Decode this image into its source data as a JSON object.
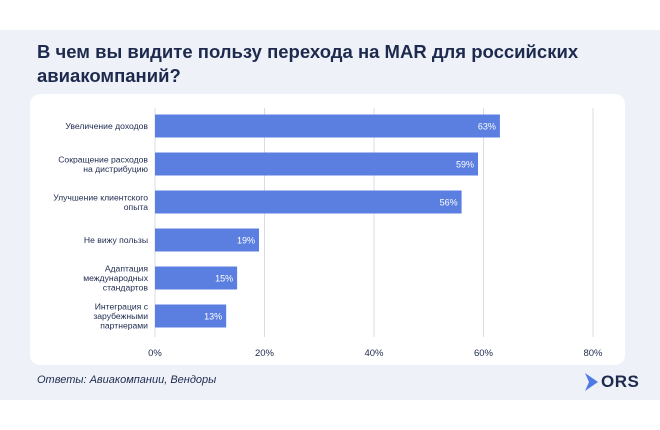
{
  "slide": {
    "title": "В чем вы видите пользу перехода на MAR для российских авиакомпаний?",
    "footer_note": "Ответы: Авиакомпании, Вендоры",
    "logo_text": "ORS",
    "colors": {
      "background_band": "#eef2f8",
      "card": "#ffffff",
      "bar": "#5b7fe0",
      "title": "#1d2a4e",
      "logo_accent": "#4f7ae6"
    }
  },
  "chart_data": {
    "type": "bar",
    "orientation": "horizontal",
    "categories": [
      "Увеличение доходов",
      "Сокращение расходов на дистрибуцию",
      "Улучшение клиентского опыта",
      "Не вижу пользы",
      "Адаптация международных стандартов",
      "Интеграция с зарубежными партнерами"
    ],
    "category_lines": [
      [
        "Увеличение доходов"
      ],
      [
        "Сокращение расходов",
        "на дистрибуцию"
      ],
      [
        "Улучшение клиентского",
        "опыта"
      ],
      [
        "Не вижу пользы"
      ],
      [
        "Адаптация",
        "международных",
        "стандартов"
      ],
      [
        "Интеграция с",
        "зарубежными",
        "партнерами"
      ]
    ],
    "values": [
      63,
      59,
      56,
      19,
      15,
      13
    ],
    "data_labels": [
      "63%",
      "59%",
      "56%",
      "19%",
      "15%",
      "13%"
    ],
    "xlim": [
      0,
      80
    ],
    "xticks": [
      0,
      20,
      40,
      60,
      80
    ],
    "xtick_labels": [
      "0%",
      "20%",
      "40%",
      "60%",
      "80%"
    ],
    "grid": "vertical",
    "legend": "none",
    "bar_color": "#5b7fe0"
  }
}
